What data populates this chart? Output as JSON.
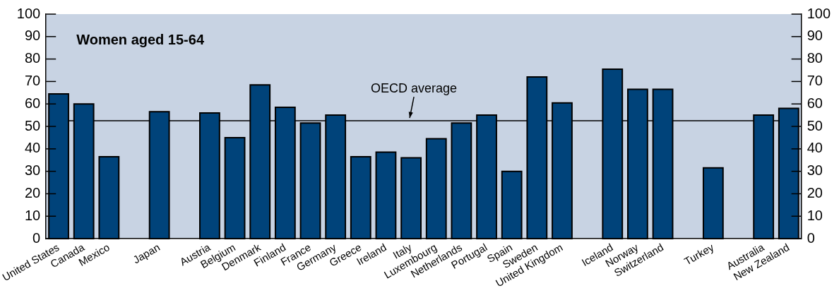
{
  "chart_data": {
    "type": "bar",
    "title": "Women aged 15-64",
    "categories": [
      "United States",
      "Canada",
      "Mexico",
      null,
      "Japan",
      null,
      "Austria",
      "Belgium",
      "Denmark",
      "Finland",
      "France",
      "Germany",
      "Greece",
      "Ireland",
      "Italy",
      "Luxembourg",
      "Netherlands",
      "Portugal",
      "Spain",
      "Sweden",
      "United Kingdom",
      null,
      "Iceland",
      "Norway",
      "Switzerland",
      null,
      "Turkey",
      null,
      "Australia",
      "New Zealand"
    ],
    "values": [
      64.5,
      60,
      36.5,
      null,
      56.5,
      null,
      56,
      45,
      68.5,
      58.5,
      51.5,
      55,
      36.5,
      38.5,
      36,
      44.5,
      51.5,
      55,
      30,
      72,
      60.5,
      null,
      75.5,
      66.5,
      66.5,
      null,
      31.5,
      null,
      55,
      58
    ],
    "color": "#00437a",
    "ylim": [
      0,
      100
    ],
    "yticks": [
      0,
      10,
      20,
      30,
      40,
      50,
      60,
      70,
      80,
      90,
      100
    ],
    "y2lim": [
      0,
      100
    ],
    "y2ticks": [
      0,
      10,
      20,
      30,
      40,
      50,
      60,
      70,
      80,
      90,
      100
    ],
    "ref_lines": [
      {
        "axis": "y",
        "value": 52.5,
        "color": "#000000"
      }
    ],
    "annotations": [
      {
        "text": "OECD average",
        "x": "Italy",
        "y": 52.5
      }
    ],
    "grid": false,
    "legend": false
  }
}
